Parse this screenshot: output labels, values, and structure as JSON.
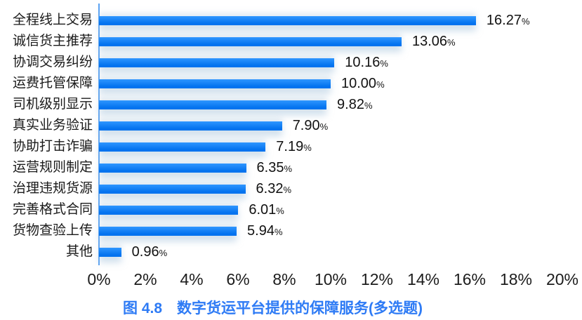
{
  "chart_data": {
    "type": "bar",
    "orientation": "horizontal",
    "caption": "图 4.8　数字货运平台提供的保障服务(多选题)",
    "categories": [
      "全程线上交易",
      "诚信货主推荐",
      "协调交易纠纷",
      "运费托管保障",
      "司机级别显示",
      "真实业务验证",
      "协助打击诈骗",
      "运营规则制定",
      "治理违规货源",
      "完善格式合同",
      "货物查验上传",
      "其他"
    ],
    "values": [
      16.27,
      13.06,
      10.16,
      10.0,
      9.82,
      7.9,
      7.19,
      6.35,
      6.32,
      6.01,
      5.94,
      0.96
    ],
    "value_labels": [
      "16.27",
      "13.06",
      "10.16",
      "10.00",
      "9.82",
      "7.90",
      "7.19",
      "6.35",
      "6.32",
      "6.01",
      "5.94",
      "0.96"
    ],
    "value_suffix": "%",
    "xlabel": "",
    "ylabel": "",
    "xlim": [
      0,
      20
    ],
    "x_ticks": [
      "0%",
      "2%",
      "4%",
      "6%",
      "8%",
      "10%",
      "12%",
      "14%",
      "16%",
      "18%",
      "20%"
    ],
    "grid": "off",
    "legend": "none",
    "bar_color": "#0473ef",
    "bar_color_top": "#2f96ff",
    "axis_line_color": "#5aa2f3",
    "caption_color": "#2e7bf5",
    "text_color": "#1a1a1a"
  }
}
